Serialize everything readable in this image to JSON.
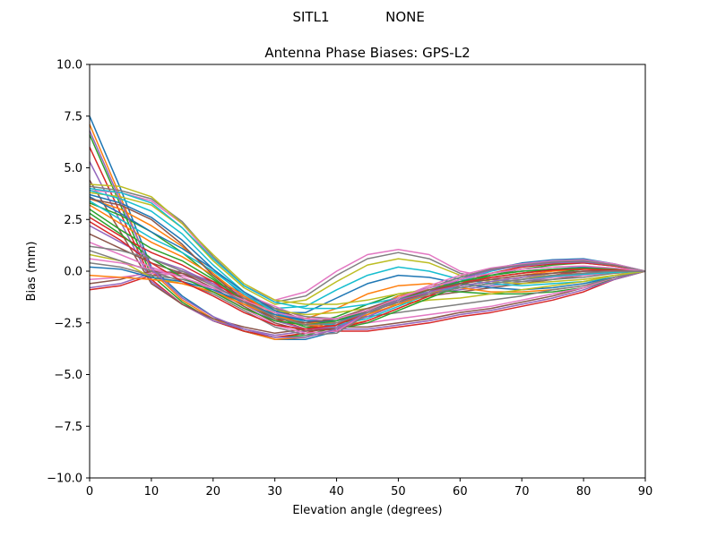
{
  "figure": {
    "suptitle_left": "SITL1",
    "suptitle_right": "NONE"
  },
  "chart_data": {
    "type": "line",
    "title": "Antenna Phase Biases: GPS-L2",
    "xlabel": "Elevation angle (degrees)",
    "ylabel": "Bias (mm)",
    "xlim": [
      0,
      90
    ],
    "ylim": [
      -10,
      10
    ],
    "xticks": [
      "0",
      "10",
      "20",
      "30",
      "40",
      "50",
      "60",
      "70",
      "80",
      "90"
    ],
    "yticks": [
      "−10.0",
      "−7.5",
      "−5.0",
      "−2.5",
      "0.0",
      "2.5",
      "5.0",
      "7.5",
      "10.0"
    ],
    "grid": false,
    "legend": "none",
    "x": [
      0,
      5,
      10,
      15,
      20,
      25,
      30,
      35,
      40,
      45,
      50,
      55,
      60,
      65,
      70,
      75,
      80,
      85,
      90
    ],
    "colors": [
      "#1f77b4",
      "#ff7f0e",
      "#2ca02c",
      "#d62728",
      "#9467bd",
      "#8c564b",
      "#e377c2",
      "#7f7f7f",
      "#bcbd22",
      "#17becf"
    ],
    "series": [
      {
        "values": [
          7.5,
          4.0,
          0.2,
          -1.2,
          -2.2,
          -2.9,
          -3.3,
          -3.3,
          -2.9,
          -1.9,
          -1.2,
          -0.8,
          -0.5,
          -0.3,
          -0.1,
          0.1,
          0.2,
          0.1,
          0.0
        ]
      },
      {
        "values": [
          7.1,
          3.6,
          0.0,
          -1.4,
          -2.3,
          -2.9,
          -3.3,
          -3.2,
          -2.8,
          -1.9,
          -1.2,
          -0.9,
          -0.6,
          -0.4,
          -0.2,
          0.0,
          0.1,
          0.1,
          0.0
        ]
      },
      {
        "values": [
          6.6,
          3.2,
          -0.2,
          -1.5,
          -2.4,
          -2.9,
          -3.2,
          -3.1,
          -2.7,
          -1.9,
          -1.3,
          -1.0,
          -0.7,
          -0.5,
          -0.3,
          -0.1,
          0.1,
          0.1,
          0.0
        ]
      },
      {
        "values": [
          6.0,
          2.8,
          -0.4,
          -1.6,
          -2.4,
          -2.9,
          -3.2,
          -3.0,
          -2.6,
          -1.9,
          -1.4,
          -1.1,
          -0.8,
          -0.6,
          -0.4,
          -0.2,
          0.0,
          0.1,
          0.0
        ]
      },
      {
        "values": [
          5.3,
          2.4,
          -0.5,
          -1.6,
          -2.4,
          -2.8,
          -3.1,
          -2.9,
          -2.5,
          -1.9,
          -1.4,
          -1.1,
          -0.9,
          -0.7,
          -0.5,
          -0.3,
          -0.1,
          0.0,
          0.0
        ]
      },
      {
        "values": [
          4.4,
          1.9,
          -0.6,
          -1.6,
          -2.3,
          -2.7,
          -3.0,
          -2.8,
          -2.4,
          -1.9,
          -1.5,
          -1.2,
          -1.0,
          -0.8,
          -0.6,
          -0.4,
          -0.2,
          0.0,
          0.0
        ]
      },
      {
        "values": [
          3.9,
          3.8,
          3.4,
          2.3,
          0.6,
          -0.7,
          -1.4,
          -1.0,
          0.0,
          0.8,
          1.05,
          0.8,
          0.0,
          -0.3,
          -0.4,
          -0.3,
          -0.2,
          -0.1,
          0.0
        ]
      },
      {
        "values": [
          4.1,
          3.9,
          3.5,
          2.4,
          0.7,
          -0.7,
          -1.5,
          -1.2,
          -0.2,
          0.6,
          0.9,
          0.6,
          -0.1,
          -0.4,
          -0.5,
          -0.4,
          -0.3,
          -0.1,
          0.0
        ]
      },
      {
        "values": [
          3.8,
          3.6,
          3.2,
          2.1,
          0.5,
          -0.8,
          -1.6,
          -1.4,
          -0.5,
          0.3,
          0.6,
          0.4,
          -0.2,
          -0.5,
          -0.6,
          -0.5,
          -0.4,
          -0.2,
          0.0
        ]
      },
      {
        "values": [
          3.9,
          3.5,
          2.9,
          1.8,
          0.3,
          -1.0,
          -1.8,
          -1.7,
          -0.9,
          -0.2,
          0.2,
          0.0,
          -0.4,
          -0.6,
          -0.7,
          -0.6,
          -0.5,
          -0.3,
          0.0
        ]
      },
      {
        "values": [
          3.7,
          3.3,
          2.6,
          1.5,
          0.1,
          -1.2,
          -2.0,
          -2.0,
          -1.3,
          -0.6,
          -0.2,
          -0.3,
          -0.6,
          -0.8,
          -0.9,
          -0.8,
          -0.6,
          -0.3,
          0.0
        ]
      },
      {
        "values": [
          3.5,
          3.0,
          2.2,
          1.2,
          -0.1,
          -1.3,
          -2.2,
          -2.3,
          -1.8,
          -1.1,
          -0.7,
          -0.6,
          -0.8,
          -1.0,
          -1.0,
          -0.9,
          -0.7,
          -0.4,
          0.0
        ]
      },
      {
        "values": [
          3.3,
          2.7,
          1.9,
          0.9,
          -0.3,
          -1.5,
          -2.4,
          -2.6,
          -2.2,
          -1.6,
          -1.1,
          -0.9,
          -1.0,
          -1.1,
          -1.1,
          -1.0,
          -0.8,
          -0.4,
          0.0
        ]
      },
      {
        "values": [
          -0.9,
          -0.7,
          -0.2,
          -0.1,
          -0.6,
          -1.3,
          -2.0,
          -2.6,
          -2.9,
          -2.9,
          -2.7,
          -2.5,
          -2.2,
          -2.0,
          -1.7,
          -1.4,
          -1.0,
          -0.4,
          0.0
        ]
      },
      {
        "values": [
          -0.8,
          -0.6,
          -0.1,
          0.0,
          -0.5,
          -1.2,
          -1.9,
          -2.5,
          -2.8,
          -2.8,
          -2.6,
          -2.4,
          -2.1,
          -1.9,
          -1.6,
          -1.3,
          -0.9,
          -0.4,
          0.0
        ]
      },
      {
        "values": [
          -0.6,
          -0.4,
          0.0,
          -0.1,
          -0.5,
          -1.1,
          -1.8,
          -2.4,
          -2.7,
          -2.7,
          -2.5,
          -2.3,
          -2.0,
          -1.8,
          -1.5,
          -1.2,
          -0.8,
          -0.3,
          0.0
        ]
      },
      {
        "values": [
          -0.4,
          -0.3,
          -0.1,
          -0.2,
          -0.6,
          -1.1,
          -1.7,
          -2.3,
          -2.5,
          -2.5,
          -2.3,
          -2.1,
          -1.9,
          -1.7,
          -1.4,
          -1.1,
          -0.8,
          -0.3,
          0.0
        ]
      },
      {
        "values": [
          0.4,
          0.2,
          -0.2,
          -0.4,
          -0.8,
          -1.3,
          -1.8,
          -2.2,
          -2.3,
          -2.2,
          -2.0,
          -1.8,
          -1.6,
          -1.4,
          -1.2,
          -0.9,
          -0.7,
          -0.3,
          0.0
        ]
      },
      {
        "values": [
          0.8,
          0.5,
          -0.3,
          -0.6,
          -1.0,
          -1.5,
          -1.9,
          -2.1,
          -2.0,
          -1.8,
          -1.6,
          -1.4,
          -1.3,
          -1.1,
          -0.9,
          -0.7,
          -0.5,
          -0.2,
          0.0
        ]
      },
      {
        "values": [
          3.4,
          2.5,
          1.6,
          0.9,
          0.0,
          -1.1,
          -2.0,
          -2.5,
          -2.6,
          -2.3,
          -1.7,
          -1.1,
          -0.5,
          0.0,
          0.3,
          0.5,
          0.5,
          0.3,
          0.0
        ]
      },
      {
        "values": [
          3.6,
          2.8,
          1.9,
          1.1,
          0.1,
          -1.0,
          -1.9,
          -2.4,
          -2.5,
          -2.2,
          -1.6,
          -1.0,
          -0.4,
          0.1,
          0.4,
          0.55,
          0.6,
          0.35,
          0.0
        ]
      },
      {
        "values": [
          3.2,
          2.3,
          1.4,
          0.7,
          -0.2,
          -1.2,
          -2.1,
          -2.6,
          -2.7,
          -2.4,
          -1.8,
          -1.2,
          -0.6,
          -0.1,
          0.2,
          0.4,
          0.45,
          0.3,
          0.0
        ]
      },
      {
        "values": [
          3.0,
          2.0,
          1.1,
          0.5,
          -0.4,
          -1.4,
          -2.2,
          -2.7,
          -2.8,
          -2.5,
          -1.9,
          -1.3,
          -0.7,
          -0.2,
          0.1,
          0.3,
          0.4,
          0.25,
          0.0
        ]
      },
      {
        "values": [
          2.6,
          1.7,
          0.9,
          0.3,
          -0.5,
          -1.5,
          -2.3,
          -2.8,
          -2.8,
          -2.4,
          -1.8,
          -1.2,
          -0.6,
          -0.1,
          0.2,
          0.35,
          0.4,
          0.25,
          0.0
        ]
      },
      {
        "values": [
          2.2,
          1.4,
          0.6,
          0.1,
          -0.6,
          -1.6,
          -2.4,
          -2.8,
          -2.7,
          -2.2,
          -1.6,
          -1.0,
          -0.4,
          0.05,
          0.25,
          0.4,
          0.45,
          0.3,
          0.0
        ]
      },
      {
        "values": [
          1.8,
          1.1,
          0.4,
          -0.1,
          -0.8,
          -1.7,
          -2.5,
          -2.9,
          -2.8,
          -2.1,
          -1.4,
          -0.8,
          -0.3,
          0.1,
          0.3,
          0.45,
          0.5,
          0.3,
          0.0
        ]
      },
      {
        "values": [
          1.4,
          0.8,
          0.2,
          -0.3,
          -0.9,
          -1.8,
          -2.6,
          -3.0,
          -2.9,
          -2.0,
          -1.3,
          -0.7,
          -0.2,
          0.15,
          0.35,
          0.5,
          0.55,
          0.35,
          0.0
        ]
      },
      {
        "values": [
          1.0,
          0.5,
          0.0,
          -0.5,
          -1.1,
          -1.9,
          -2.7,
          -3.1,
          -3.0,
          -2.1,
          -1.4,
          -0.8,
          -0.3,
          0.1,
          0.3,
          0.45,
          0.5,
          0.3,
          0.0
        ]
      },
      {
        "values": [
          4.2,
          4.1,
          3.6,
          2.3,
          0.8,
          -0.6,
          -1.4,
          -1.6,
          -1.6,
          -1.4,
          -1.1,
          -0.9,
          -0.7,
          -0.5,
          -0.3,
          -0.2,
          -0.1,
          -0.05,
          0.0
        ]
      },
      {
        "values": [
          4.0,
          3.8,
          3.3,
          2.1,
          0.6,
          -0.7,
          -1.5,
          -1.8,
          -1.8,
          -1.6,
          -1.3,
          -1.0,
          -0.8,
          -0.6,
          -0.4,
          -0.25,
          -0.15,
          -0.05,
          0.0
        ]
      },
      {
        "values": [
          0.2,
          0.1,
          -0.3,
          -0.5,
          -0.9,
          -1.5,
          -2.1,
          -2.4,
          -2.4,
          -2.0,
          -1.5,
          -1.0,
          -0.5,
          -0.2,
          0.0,
          0.1,
          0.15,
          0.1,
          0.0
        ]
      },
      {
        "values": [
          -0.2,
          -0.3,
          -0.4,
          -0.6,
          -1.0,
          -1.6,
          -2.2,
          -2.5,
          -2.5,
          -2.1,
          -1.6,
          -1.1,
          -0.6,
          -0.3,
          -0.1,
          0.05,
          0.1,
          0.05,
          0.0
        ]
      },
      {
        "values": [
          2.8,
          1.8,
          0.6,
          -0.3,
          -1.0,
          -1.8,
          -2.4,
          -2.6,
          -2.4,
          -1.9,
          -1.4,
          -0.9,
          -0.5,
          -0.2,
          0.0,
          0.1,
          0.15,
          0.1,
          0.0
        ]
      },
      {
        "values": [
          2.4,
          1.5,
          0.4,
          -0.5,
          -1.2,
          -2.0,
          -2.6,
          -2.8,
          -2.6,
          -2.0,
          -1.5,
          -1.0,
          -0.6,
          -0.3,
          -0.1,
          0.05,
          0.1,
          0.05,
          0.0
        ]
      },
      {
        "values": [
          6.8,
          3.4,
          0.1,
          -1.3,
          -2.2,
          -2.8,
          -3.2,
          -3.2,
          -2.8,
          -2.0,
          -1.4,
          -1.0,
          -0.7,
          -0.5,
          -0.3,
          -0.1,
          0.0,
          0.0,
          0.0
        ]
      },
      {
        "values": [
          3.5,
          3.2,
          2.5,
          1.3,
          -0.2,
          -1.4,
          -2.3,
          -2.5,
          -2.3,
          -1.8,
          -1.3,
          -0.9,
          -0.6,
          -0.4,
          -0.2,
          -0.1,
          0.0,
          0.0,
          0.0
        ]
      },
      {
        "values": [
          0.6,
          0.4,
          0.1,
          -0.3,
          -0.8,
          -1.4,
          -2.0,
          -2.3,
          -2.3,
          -1.9,
          -1.3,
          -0.8,
          -0.4,
          -0.1,
          0.1,
          0.2,
          0.25,
          0.15,
          0.0
        ]
      },
      {
        "values": [
          1.2,
          1.0,
          0.6,
          0.0,
          -0.7,
          -1.5,
          -2.2,
          -2.6,
          -2.5,
          -2.0,
          -1.5,
          -1.1,
          -0.8,
          -0.6,
          -0.4,
          -0.2,
          -0.1,
          0.0,
          0.0
        ]
      }
    ]
  }
}
